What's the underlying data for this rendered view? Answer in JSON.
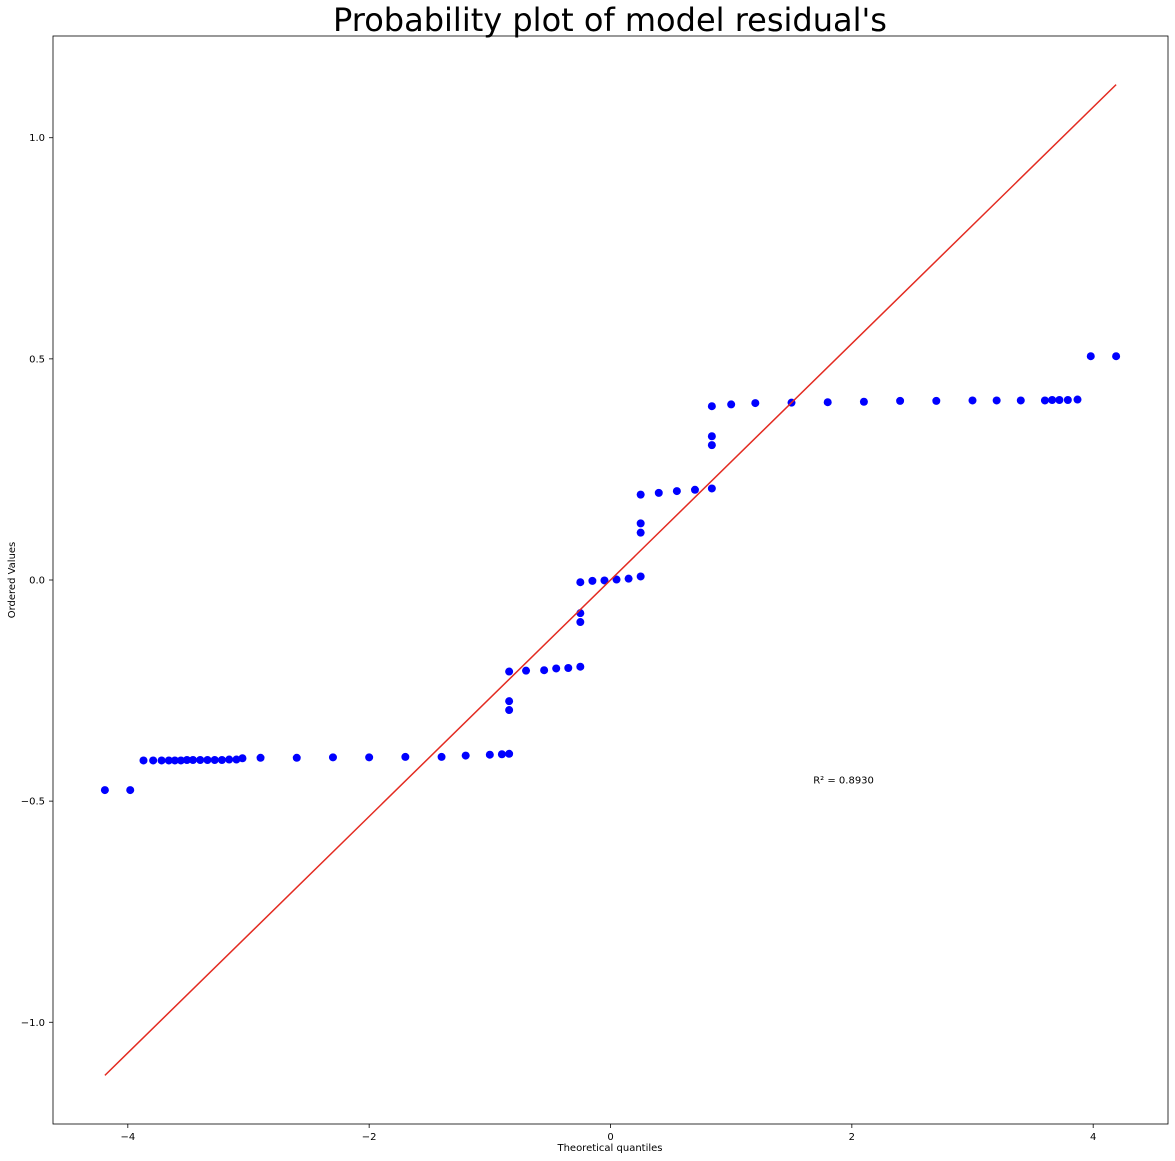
{
  "chart_data": {
    "type": "scatter",
    "title": "Probability plot of model residual's",
    "xlabel": "Theoretical quantiles",
    "ylabel": "Ordered Values",
    "xlim": [
      -4.62,
      4.62
    ],
    "ylim": [
      -1.23,
      1.23
    ],
    "x_ticks": [
      -4,
      -2,
      0,
      2,
      4
    ],
    "x_tick_labels": [
      "−4",
      "−2",
      "0",
      "2",
      "4"
    ],
    "y_ticks": [
      -1.0,
      -0.5,
      0.0,
      0.5,
      1.0
    ],
    "y_tick_labels": [
      "−1.0",
      "−0.5",
      "0.0",
      "0.5",
      "1.0"
    ],
    "grid": false,
    "legend": "none",
    "annotation": {
      "text": "R² = 0.8930",
      "x": 1.68,
      "y": -0.46
    },
    "series": [
      {
        "kind": "points",
        "color": "#0000ff",
        "values": [
          [
            -4.19,
            -0.475
          ],
          [
            -3.98,
            -0.475
          ],
          [
            -3.87,
            -0.408
          ],
          [
            -3.79,
            -0.408
          ],
          [
            -3.72,
            -0.408
          ],
          [
            -3.66,
            -0.408
          ],
          [
            -3.61,
            -0.408
          ],
          [
            -3.56,
            -0.408
          ],
          [
            -3.51,
            -0.407
          ],
          [
            -3.46,
            -0.407
          ],
          [
            -3.4,
            -0.407
          ],
          [
            -3.34,
            -0.407
          ],
          [
            -3.28,
            -0.407
          ],
          [
            -3.22,
            -0.407
          ],
          [
            -3.16,
            -0.406
          ],
          [
            -3.1,
            -0.406
          ],
          [
            -3.05,
            -0.403
          ],
          [
            -2.9,
            -0.402
          ],
          [
            -2.6,
            -0.402
          ],
          [
            -2.3,
            -0.401
          ],
          [
            -2.0,
            -0.401
          ],
          [
            -1.7,
            -0.4
          ],
          [
            -1.4,
            -0.4
          ],
          [
            -1.2,
            -0.397
          ],
          [
            -1.0,
            -0.395
          ],
          [
            -0.9,
            -0.394
          ],
          [
            -0.84,
            -0.393
          ],
          [
            -0.84,
            -0.274
          ],
          [
            -0.84,
            -0.294
          ],
          [
            -0.84,
            -0.207
          ],
          [
            -0.7,
            -0.205
          ],
          [
            -0.55,
            -0.204
          ],
          [
            -0.45,
            -0.2
          ],
          [
            -0.35,
            -0.199
          ],
          [
            -0.25,
            -0.196
          ],
          [
            -0.25,
            -0.075
          ],
          [
            -0.25,
            -0.095
          ],
          [
            -0.25,
            -0.005
          ],
          [
            -0.15,
            -0.002
          ],
          [
            -0.05,
            -0.001
          ],
          [
            0.05,
            0.001
          ],
          [
            0.15,
            0.003
          ],
          [
            0.25,
            0.008
          ],
          [
            0.25,
            0.128
          ],
          [
            0.25,
            0.107
          ],
          [
            0.25,
            0.193
          ],
          [
            0.4,
            0.197
          ],
          [
            0.55,
            0.201
          ],
          [
            0.7,
            0.204
          ],
          [
            0.84,
            0.207
          ],
          [
            0.84,
            0.325
          ],
          [
            0.84,
            0.305
          ],
          [
            0.84,
            0.393
          ],
          [
            1.0,
            0.397
          ],
          [
            1.2,
            0.4
          ],
          [
            1.5,
            0.401
          ],
          [
            1.8,
            0.402
          ],
          [
            2.1,
            0.403
          ],
          [
            2.4,
            0.405
          ],
          [
            2.7,
            0.405
          ],
          [
            3.0,
            0.406
          ],
          [
            3.2,
            0.406
          ],
          [
            3.4,
            0.406
          ],
          [
            3.6,
            0.406
          ],
          [
            3.66,
            0.407
          ],
          [
            3.72,
            0.407
          ],
          [
            3.79,
            0.407
          ],
          [
            3.87,
            0.408
          ],
          [
            3.98,
            0.506
          ],
          [
            4.19,
            0.506
          ]
        ]
      },
      {
        "kind": "line",
        "color": "#e32b21",
        "values": [
          [
            -4.19,
            -1.12
          ],
          [
            4.19,
            1.12
          ]
        ]
      }
    ]
  }
}
